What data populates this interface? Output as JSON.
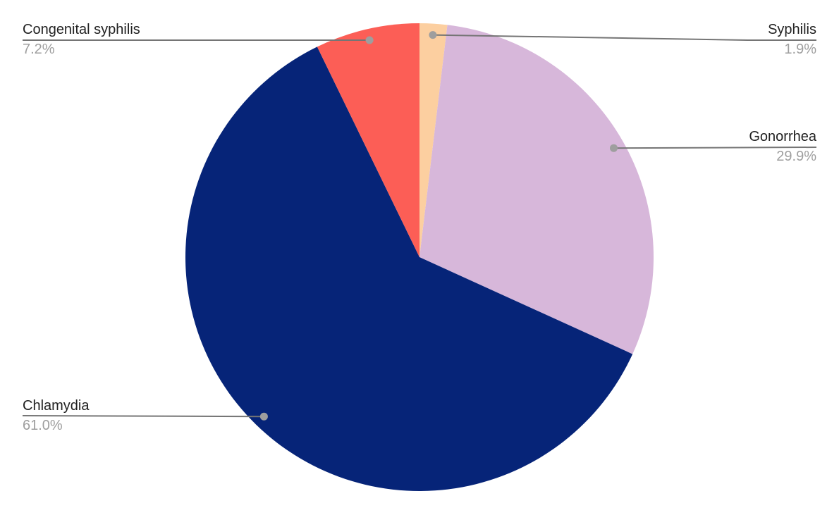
{
  "page": {
    "background": "#ffffff"
  },
  "chart_data": {
    "type": "pie",
    "title": "",
    "categories": [
      "Syphilis",
      "Gonorrhea",
      "Chlamydia",
      "Congenital syphilis"
    ],
    "values": [
      1.9,
      29.9,
      61.0,
      7.2
    ],
    "percent_labels": [
      "1.9%",
      "29.9%",
      "61.0%",
      "7.2%"
    ],
    "colors": [
      "#fccfa0",
      "#d7b7da",
      "#062478",
      "#fc5e56"
    ],
    "start_angle_deg": 0,
    "direction": "clockwise",
    "legend_position": "none",
    "label_style": {
      "name_color": "#212121",
      "percent_color": "#9e9e9e",
      "leader_line_color": "#757575",
      "dot_color": "#9e9e9e"
    }
  }
}
